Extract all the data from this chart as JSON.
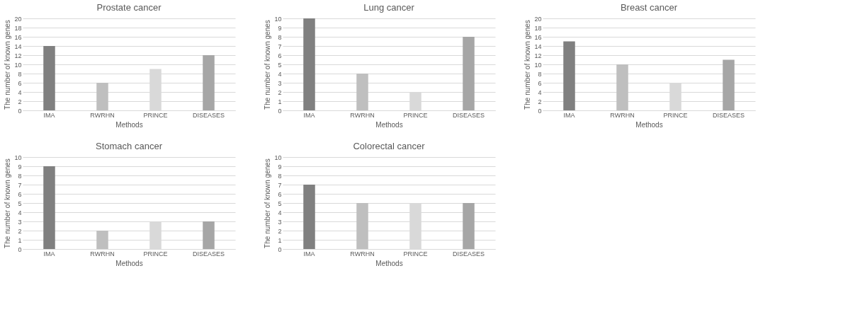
{
  "chart_data": [
    {
      "type": "bar",
      "title": "Prostate cancer",
      "xlabel": "Methods",
      "ylabel": "The number of known genes",
      "categories": [
        "IMA",
        "RWRHN",
        "PRINCE",
        "DISEASES"
      ],
      "values": [
        14,
        6,
        9,
        12
      ],
      "colors": [
        "#808080",
        "#bfbfbf",
        "#d9d9d9",
        "#a6a6a6"
      ],
      "ylim": [
        0,
        20
      ],
      "yticks": [
        0,
        2,
        4,
        6,
        8,
        10,
        12,
        14,
        16,
        18,
        20
      ],
      "grid": "y",
      "legend": false
    },
    {
      "type": "bar",
      "title": "Lung cancer",
      "xlabel": "Methods",
      "ylabel": "The number of known genes",
      "categories": [
        "IMA",
        "RWRHN",
        "PRINCE",
        "DISEASES"
      ],
      "values": [
        10,
        4,
        2,
        8
      ],
      "colors": [
        "#808080",
        "#bfbfbf",
        "#d9d9d9",
        "#a6a6a6"
      ],
      "ylim": [
        0,
        10
      ],
      "yticks": [
        0,
        1,
        2,
        3,
        4,
        5,
        6,
        7,
        8,
        9,
        10
      ],
      "grid": "y",
      "legend": false
    },
    {
      "type": "bar",
      "title": "Breast cancer",
      "xlabel": "Methods",
      "ylabel": "The number of known genes",
      "categories": [
        "IMA",
        "RWRHN",
        "PRINCE",
        "DISEASES"
      ],
      "values": [
        15,
        10,
        6,
        11
      ],
      "colors": [
        "#808080",
        "#bfbfbf",
        "#d9d9d9",
        "#a6a6a6"
      ],
      "ylim": [
        0,
        20
      ],
      "yticks": [
        0,
        2,
        4,
        6,
        8,
        10,
        12,
        14,
        16,
        18,
        20
      ],
      "grid": "y",
      "legend": false
    },
    {
      "type": "bar",
      "title": "Stomach cancer",
      "xlabel": "Methods",
      "ylabel": "The number of known genes",
      "categories": [
        "IMA",
        "RWRHN",
        "PRINCE",
        "DISEASES"
      ],
      "values": [
        9,
        2,
        3,
        3
      ],
      "colors": [
        "#808080",
        "#bfbfbf",
        "#d9d9d9",
        "#a6a6a6"
      ],
      "ylim": [
        0,
        10
      ],
      "yticks": [
        0,
        1,
        2,
        3,
        4,
        5,
        6,
        7,
        8,
        9,
        10
      ],
      "grid": "y",
      "legend": false
    },
    {
      "type": "bar",
      "title": "Colorectal cancer",
      "xlabel": "Methods",
      "ylabel": "The number of known genes",
      "categories": [
        "IMA",
        "RWRHN",
        "PRINCE",
        "DISEASES"
      ],
      "values": [
        7,
        5,
        5,
        5
      ],
      "colors": [
        "#808080",
        "#bfbfbf",
        "#d9d9d9",
        "#a6a6a6"
      ],
      "ylim": [
        0,
        10
      ],
      "yticks": [
        0,
        1,
        2,
        3,
        4,
        5,
        6,
        7,
        8,
        9,
        10
      ],
      "grid": "y",
      "legend": false
    }
  ]
}
